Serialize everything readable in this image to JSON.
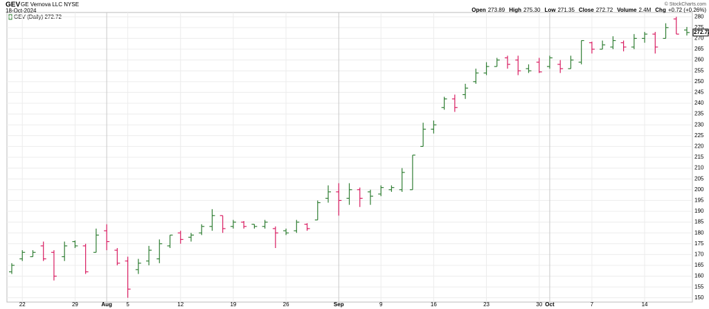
{
  "chart_data": {
    "type": "ohlc",
    "title": "GEV",
    "subtitle": "GE Vernova LLC NYSE",
    "date": "18-Oct-2024",
    "credit": "© StockCharts.com",
    "quote": [
      {
        "label": "Open",
        "value": "273.89"
      },
      {
        "label": "High",
        "value": "275.30"
      },
      {
        "label": "Low",
        "value": "271.35"
      },
      {
        "label": "Close",
        "value": "272.72"
      },
      {
        "label": "Volume",
        "value": "2.4M"
      },
      {
        "label": "Chg",
        "value": "+0.72 (+0.26%)"
      }
    ],
    "legend": "GEV (Daily) 272.72",
    "last_price_label": "272.72",
    "categories": [
      null,
      "22",
      null,
      null,
      null,
      null,
      "29",
      null,
      null,
      "Aug",
      null,
      "5",
      null,
      null,
      null,
      null,
      "12",
      null,
      null,
      null,
      null,
      "19",
      null,
      null,
      null,
      null,
      "26",
      null,
      null,
      null,
      null,
      "Sep",
      null,
      null,
      null,
      "9",
      null,
      null,
      null,
      null,
      "16",
      null,
      null,
      null,
      null,
      "23",
      null,
      null,
      null,
      null,
      "30",
      "Oct",
      null,
      null,
      null,
      "7",
      null,
      null,
      null,
      null,
      "14",
      null,
      null,
      null,
      null
    ],
    "open": [
      162,
      168,
      169,
      174,
      171,
      169,
      176,
      174,
      171,
      181,
      172,
      167,
      163,
      167,
      168,
      174,
      180,
      178,
      180,
      183,
      188,
      183,
      185,
      184,
      183,
      182,
      181,
      181,
      184,
      186,
      196,
      199,
      196,
      200,
      199,
      198,
      200,
      200,
      200,
      220,
      228,
      238,
      242,
      244,
      250,
      254,
      257,
      261,
      260,
      256,
      259,
      257,
      258,
      256,
      259,
      268,
      265,
      266,
      268,
      266,
      270,
      272,
      270,
      279,
      273.89
    ],
    "high": [
      166,
      172,
      172,
      176,
      172,
      176,
      176.5,
      175,
      182,
      184,
      173,
      169,
      168,
      174,
      177,
      179,
      181,
      180,
      184,
      191,
      188,
      186,
      185.5,
      184,
      186,
      183,
      182,
      186,
      184.5,
      195,
      202,
      203,
      203,
      201,
      200,
      202,
      202,
      210,
      216,
      231,
      232,
      243,
      244,
      249,
      256,
      259,
      261,
      262,
      262,
      258,
      261,
      262,
      260,
      262,
      269,
      268.5,
      269,
      271,
      269,
      272,
      273,
      273,
      277,
      280,
      275.3
    ],
    "low": [
      161,
      167,
      169,
      167,
      158,
      167,
      173,
      161,
      171,
      172,
      165,
      150,
      161,
      165,
      166,
      173,
      175,
      176,
      179,
      181,
      180,
      182,
      182,
      182,
      182,
      173,
      179,
      180,
      181,
      186,
      194,
      188,
      193,
      192,
      193,
      197,
      199,
      199,
      200,
      220,
      226,
      237,
      236,
      242,
      249,
      253,
      257,
      256,
      253,
      254,
      254,
      256,
      254,
      256,
      258,
      263,
      265,
      265,
      264,
      265,
      268,
      263,
      270,
      272,
      271.35
    ],
    "close": [
      165,
      171,
      171,
      168,
      160,
      174,
      174,
      162,
      179,
      176,
      166,
      154,
      166,
      172,
      175,
      179,
      177,
      179,
      183,
      188,
      182,
      185,
      183,
      183,
      185,
      180,
      180,
      185,
      182,
      194,
      199,
      195,
      200,
      196,
      197,
      201,
      201,
      208,
      216,
      228,
      230,
      242,
      238,
      247,
      254,
      257,
      260,
      258,
      255,
      255,
      254.5,
      261,
      256,
      260,
      269,
      265,
      267,
      269,
      266,
      270,
      272,
      266,
      275,
      272,
      272.72
    ],
    "up_color": "#2e7d32",
    "down_color": "#d81b60",
    "ylim": [
      148,
      282
    ],
    "yticks": [
      150,
      155,
      160,
      165,
      170,
      175,
      180,
      185,
      190,
      195,
      200,
      205,
      210,
      215,
      220,
      225,
      230,
      235,
      240,
      245,
      250,
      255,
      260,
      265,
      270,
      275,
      280
    ],
    "grid": true
  }
}
